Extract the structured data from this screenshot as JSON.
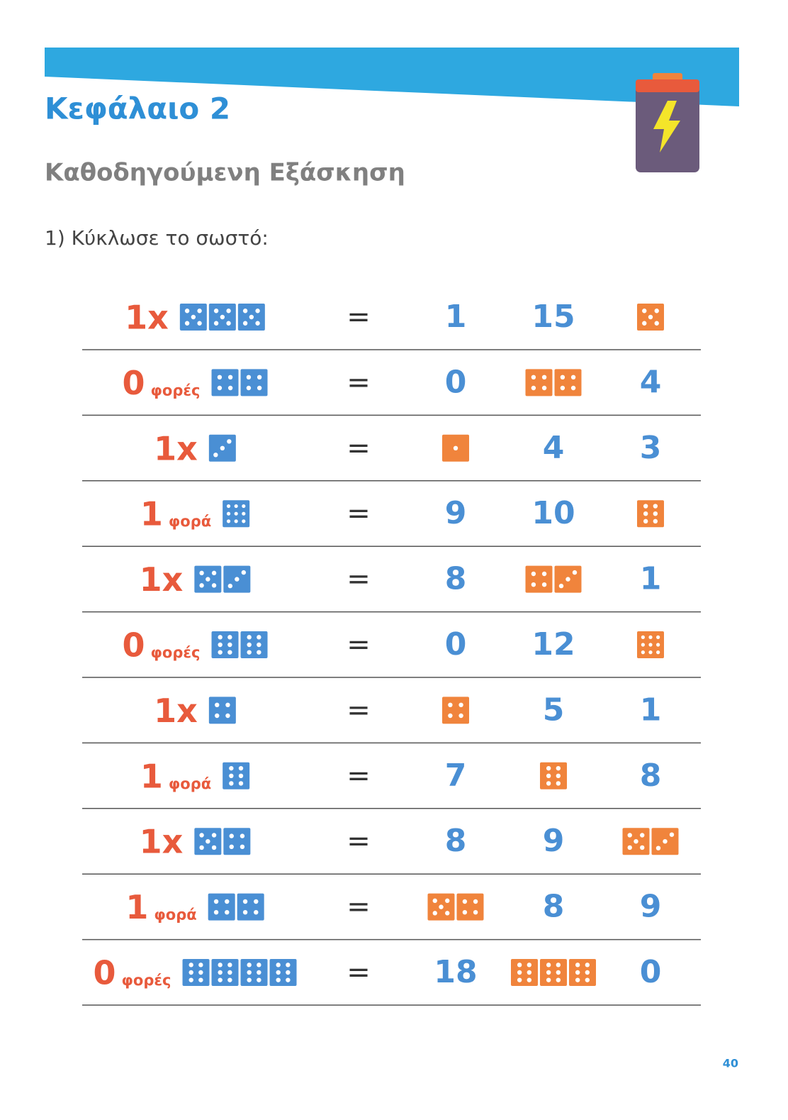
{
  "header": {
    "title": "Κεφάλαιο 2",
    "subtitle": "Καθοδηγούμενη Εξάσκηση"
  },
  "instruction": "1) Κύκλωσε το σωστό:",
  "equals": "=",
  "rows": [
    {
      "multiplier": "1x",
      "dice": [
        5,
        5,
        5
      ],
      "options": [
        "1",
        "15",
        [
          5
        ]
      ]
    },
    {
      "multiplier": "0",
      "word": "φορές",
      "dice": [
        4,
        4
      ],
      "options": [
        "0",
        [
          4,
          4
        ],
        "4"
      ]
    },
    {
      "multiplier": "1x",
      "dice": [
        3
      ],
      "options": [
        [
          1
        ],
        "4",
        "3"
      ]
    },
    {
      "multiplier": "1",
      "word": "φορά",
      "dice": [
        9
      ],
      "options": [
        "9",
        "10",
        [
          6
        ]
      ]
    },
    {
      "multiplier": "1x",
      "dice": [
        5,
        3
      ],
      "options": [
        "8",
        [
          4,
          3
        ],
        "1"
      ]
    },
    {
      "multiplier": "0",
      "word": "φορές",
      "dice": [
        6,
        6
      ],
      "options": [
        "0",
        "12",
        [
          9
        ]
      ]
    },
    {
      "multiplier": "1x",
      "dice": [
        4
      ],
      "options": [
        [
          4
        ],
        "5",
        "1"
      ]
    },
    {
      "multiplier": "1",
      "word": "φορά",
      "dice": [
        6
      ],
      "options": [
        "7",
        [
          6
        ],
        "8"
      ]
    },
    {
      "multiplier": "1x",
      "dice": [
        5,
        4
      ],
      "options": [
        "8",
        "9",
        [
          5,
          3
        ]
      ]
    },
    {
      "multiplier": "1",
      "word": "φορά",
      "dice": [
        4,
        4
      ],
      "options": [
        [
          5,
          4
        ],
        "8",
        "9"
      ]
    },
    {
      "multiplier": "0",
      "word": "φορές",
      "dice": [
        6,
        6,
        6,
        6
      ],
      "options": [
        "18",
        [
          6,
          6,
          6
        ],
        "0"
      ]
    }
  ],
  "page_number": "40"
}
